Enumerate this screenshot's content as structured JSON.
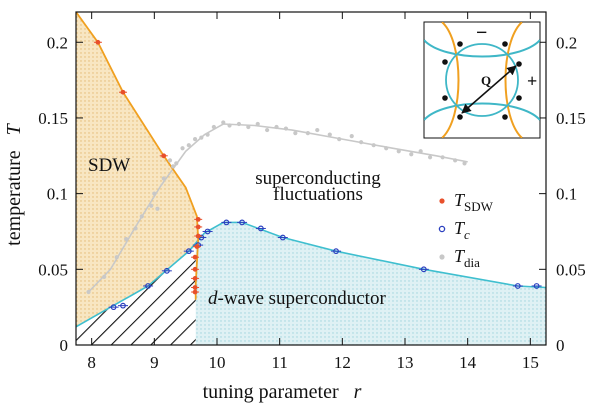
{
  "chart_data": {
    "type": "scatter",
    "xlabel": "tuning parameter",
    "xlabel_symbol": "r",
    "ylabel": "temperature",
    "ylabel_symbol": "T",
    "xlim": [
      7.75,
      15.25
    ],
    "ylim": [
      0,
      0.22
    ],
    "x_ticks": [
      "8",
      "9",
      "10",
      "11",
      "12",
      "13",
      "14",
      "15"
    ],
    "y_ticks": [
      "0",
      "0.05",
      "0.1",
      "0.15",
      "0.2"
    ],
    "y_ticks_right": [
      "0",
      "0.05",
      "0.1",
      "0.15",
      "0.2"
    ],
    "grid": false,
    "legend_position": "right-middle",
    "region_labels": {
      "sdw": "SDW",
      "fluct_line1": "superconducting",
      "fluct_line2": "fluctuations",
      "dwave_prefix": "d",
      "dwave_rest": "-wave superconductor"
    },
    "series": [
      {
        "name": "T",
        "name_subscript": "SDW",
        "color": "#e8502b",
        "line_color": "#f0a020",
        "points": [
          [
            8.1,
            0.2
          ],
          [
            8.5,
            0.167
          ],
          [
            9.15,
            0.125
          ],
          [
            9.7,
            0.083
          ],
          [
            9.7,
            0.078
          ],
          [
            9.7,
            0.072
          ],
          [
            9.68,
            0.065
          ],
          [
            9.65,
            0.058
          ],
          [
            9.65,
            0.05
          ],
          [
            9.65,
            0.044
          ],
          [
            9.65,
            0.038
          ],
          [
            9.65,
            0.035
          ]
        ]
      },
      {
        "name": "T",
        "name_subscript": "c",
        "color": "#2a3fbf",
        "line_color": "#3fbfcf",
        "points": [
          [
            8.35,
            0.025
          ],
          [
            8.5,
            0.026
          ],
          [
            8.9,
            0.039
          ],
          [
            9.2,
            0.049
          ],
          [
            9.55,
            0.062
          ],
          [
            9.7,
            0.066
          ],
          [
            9.75,
            0.071
          ],
          [
            9.85,
            0.075
          ],
          [
            10.15,
            0.081
          ],
          [
            10.4,
            0.081
          ],
          [
            10.7,
            0.077
          ],
          [
            11.05,
            0.071
          ],
          [
            11.9,
            0.062
          ],
          [
            13.3,
            0.05
          ],
          [
            14.8,
            0.039
          ],
          [
            15.1,
            0.039
          ]
        ]
      },
      {
        "name": "T",
        "name_subscript": "dia",
        "color": "#c8c8c8",
        "line_color": "#c8c8c8",
        "points": [
          [
            7.95,
            0.035
          ],
          [
            8.2,
            0.045
          ],
          [
            8.4,
            0.058
          ],
          [
            8.55,
            0.07
          ],
          [
            8.7,
            0.077
          ],
          [
            8.8,
            0.085
          ],
          [
            8.95,
            0.092
          ],
          [
            9.0,
            0.1
          ],
          [
            9.05,
            0.09
          ],
          [
            9.15,
            0.11
          ],
          [
            9.25,
            0.122
          ],
          [
            9.3,
            0.118
          ],
          [
            9.35,
            0.12
          ],
          [
            9.45,
            0.13
          ],
          [
            9.55,
            0.132
          ],
          [
            9.65,
            0.136
          ],
          [
            9.75,
            0.137
          ],
          [
            9.85,
            0.139
          ],
          [
            9.95,
            0.144
          ],
          [
            10.1,
            0.147
          ],
          [
            10.2,
            0.145
          ],
          [
            10.35,
            0.146
          ],
          [
            10.5,
            0.144
          ],
          [
            10.65,
            0.146
          ],
          [
            10.8,
            0.142
          ],
          [
            10.95,
            0.144
          ],
          [
            11.1,
            0.143
          ],
          [
            11.25,
            0.14
          ],
          [
            11.45,
            0.14
          ],
          [
            11.6,
            0.142
          ],
          [
            11.8,
            0.139
          ],
          [
            11.95,
            0.136
          ],
          [
            12.15,
            0.138
          ],
          [
            12.3,
            0.134
          ],
          [
            12.5,
            0.132
          ],
          [
            12.7,
            0.13
          ],
          [
            12.9,
            0.128
          ],
          [
            13.1,
            0.126
          ],
          [
            13.25,
            0.128
          ],
          [
            13.4,
            0.124
          ],
          [
            13.6,
            0.124
          ],
          [
            13.8,
            0.122
          ],
          [
            13.95,
            0.12
          ]
        ]
      }
    ],
    "inset": {
      "vector_label": "Q",
      "minus_label": "−",
      "plus_label": "+",
      "minus_color": "#3fb7c7",
      "plus_color": "#f0a020"
    },
    "colors": {
      "sdw_fill": "#f6e1b8",
      "sc_fill": "#d6eef2",
      "hatch": "#111111"
    }
  }
}
